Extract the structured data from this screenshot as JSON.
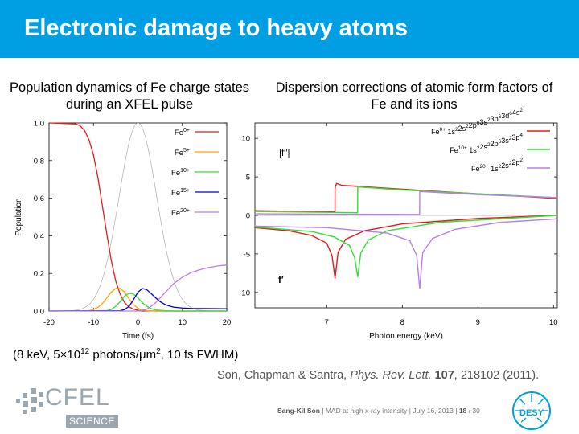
{
  "slide": {
    "title": "Electronic damage to heavy atoms",
    "params": {
      "pre": "(8 keV, 5×10",
      "exp": "12",
      "mid": " photons/μm",
      "exp2": "2",
      "post": ", 10 fs FWHM)"
    },
    "citation": {
      "authors": "Son, Chapman & Santra, ",
      "journal": "Phys. Rev. Lett.",
      "volume": "107",
      "rest": ", 218102 (2011)."
    },
    "footer": {
      "author": "Sang-Kil Son",
      "text": "  |  MAD at high x-ray intensity  |  July 16, 2013  |  ",
      "page": "18",
      "total": " / 30"
    },
    "logos": {
      "cfel": "CFEL",
      "cfel_sub": "SCIENCE",
      "desy": "DESY"
    },
    "colors": {
      "header": "#009fe3",
      "red": "#e41a1c",
      "orange": "#ffa500",
      "green": "#33e033",
      "blue": "#0000cc",
      "purple": "#b77fe8",
      "gray": "#a0a0a0"
    }
  },
  "chart_data": [
    {
      "type": "line",
      "title": "Population dynamics of Fe charge states during an XFEL pulse",
      "xlabel": "Time (fs)",
      "ylabel": "Population",
      "xlim": [
        -20,
        20
      ],
      "ylim": [
        0,
        1.0
      ],
      "xticks": [
        "-20",
        "-10",
        "0",
        "10",
        "20"
      ],
      "yticks": [
        "0.0",
        "0.2",
        "0.4",
        "0.6",
        "0.8",
        "1.0"
      ],
      "legend": "top-right",
      "series": [
        {
          "name": "Fe",
          "sup": "0+",
          "color": "#e41a1c",
          "x": [
            -20,
            -14,
            -13,
            -12,
            -11,
            -10,
            -9,
            -8,
            -7,
            -6,
            -5,
            -4,
            -3,
            -2,
            -1,
            0,
            1,
            2,
            4,
            6,
            10,
            15,
            20
          ],
          "y": [
            1.0,
            0.995,
            0.985,
            0.96,
            0.91,
            0.83,
            0.71,
            0.56,
            0.41,
            0.27,
            0.16,
            0.09,
            0.045,
            0.022,
            0.01,
            0.004,
            0.002,
            0.001,
            0,
            0,
            0,
            0,
            0
          ]
        },
        {
          "name": "Fe",
          "sup": "5+",
          "color": "#ffa500",
          "x": [
            -20,
            -11,
            -10,
            -9,
            -8,
            -7,
            -6,
            -5,
            -4,
            -3,
            -2,
            -1,
            0,
            1,
            2,
            4,
            6,
            10,
            20
          ],
          "y": [
            0,
            0.002,
            0.008,
            0.02,
            0.04,
            0.07,
            0.1,
            0.12,
            0.12,
            0.1,
            0.065,
            0.035,
            0.015,
            0.006,
            0.002,
            0,
            0,
            0,
            0
          ]
        },
        {
          "name": "Fe",
          "sup": "10+",
          "color": "#33e033",
          "x": [
            -20,
            -7,
            -6,
            -5,
            -4,
            -3,
            -2,
            -1,
            0,
            1,
            2,
            3,
            4,
            6,
            8,
            10,
            20
          ],
          "y": [
            0,
            0.002,
            0.008,
            0.025,
            0.05,
            0.08,
            0.095,
            0.09,
            0.07,
            0.045,
            0.025,
            0.013,
            0.006,
            0.002,
            0,
            0,
            0
          ]
        },
        {
          "name": "Fe",
          "sup": "15+",
          "color": "#0000cc",
          "x": [
            -20,
            -4,
            -3,
            -2,
            -1,
            0,
            1,
            2,
            3,
            4,
            5,
            6,
            7,
            8,
            10,
            12,
            15,
            20
          ],
          "y": [
            0,
            0.002,
            0.008,
            0.025,
            0.06,
            0.1,
            0.12,
            0.113,
            0.093,
            0.07,
            0.05,
            0.036,
            0.027,
            0.021,
            0.016,
            0.014,
            0.013,
            0.012
          ]
        },
        {
          "name": "Fe",
          "sup": "20+",
          "color": "#b77fe8",
          "x": [
            -20,
            0,
            1,
            2,
            3,
            4,
            5,
            6,
            7,
            8,
            10,
            12,
            14,
            16,
            18,
            20
          ],
          "y": [
            0,
            0,
            0.003,
            0.01,
            0.025,
            0.045,
            0.07,
            0.095,
            0.12,
            0.145,
            0.18,
            0.205,
            0.22,
            0.232,
            0.24,
            0.245
          ]
        },
        {
          "name": "",
          "color": "#a0a0a0",
          "pulse": true,
          "fwhm_fs": 10
        }
      ]
    },
    {
      "type": "line",
      "title": "Dispersion corrections of atomic form factors of Fe and its ions",
      "xlabel": "Photon energy (keV)",
      "xlim": [
        6.05,
        10.05
      ],
      "ylim": [
        -12,
        12
      ],
      "xticks": [
        "7",
        "8",
        "9",
        "10"
      ],
      "yticks": [
        "-10",
        "-5",
        "0",
        "5",
        "10"
      ],
      "annotations": [
        "|f′′|",
        "f′"
      ],
      "legend": "top-right",
      "series": [
        {
          "name": "Fe",
          "sup": "0+",
          "config": [
            [
              "1s",
              "2"
            ],
            [
              "2s",
              "2"
            ],
            [
              "2p",
              "6"
            ],
            [
              "3s",
              "2"
            ],
            [
              "3p",
              "6"
            ],
            [
              "3d",
              "6"
            ],
            [
              "4s",
              "2"
            ]
          ],
          "color": "#e41a1c",
          "edge_keV": 7.11,
          "f2_x": [
            6.05,
            7.109,
            7.11,
            7.13,
            7.2,
            8,
            9,
            10.05
          ],
          "f2_y": [
            0.6,
            0.45,
            3.6,
            4.15,
            3.9,
            3.4,
            2.8,
            2.2
          ],
          "f1_x": [
            6.05,
            6.5,
            6.8,
            7.0,
            7.07,
            7.11,
            7.15,
            7.25,
            7.5,
            8,
            9,
            10.05
          ],
          "f1_y": [
            -1.6,
            -2.0,
            -2.6,
            -3.6,
            -5.2,
            -8.2,
            -4.8,
            -3.1,
            -2.0,
            -1.1,
            -0.4,
            0
          ]
        },
        {
          "name": "Fe",
          "sup": "10+",
          "config": [
            [
              "1s",
              "2"
            ],
            [
              "2s",
              "2"
            ],
            [
              "2p",
              "6"
            ],
            [
              "3s",
              "2"
            ],
            [
              "3p",
              "4"
            ]
          ],
          "color": "#33e033",
          "edge_keV": 7.41,
          "f2_x": [
            6.05,
            7.409,
            7.41,
            8,
            9,
            10.05
          ],
          "f2_y": [
            0.5,
            0.35,
            3.7,
            3.3,
            2.8,
            2.3
          ],
          "f1_x": [
            6.05,
            6.8,
            7.1,
            7.3,
            7.37,
            7.41,
            7.45,
            7.55,
            7.8,
            8.5,
            10.05
          ],
          "f1_y": [
            -1.5,
            -2.1,
            -2.8,
            -3.9,
            -5.5,
            -8.0,
            -4.9,
            -3.2,
            -2.0,
            -0.9,
            0
          ]
        },
        {
          "name": "Fe",
          "sup": "20+",
          "config": [
            [
              "1s",
              "2"
            ],
            [
              "2s",
              "2"
            ],
            [
              "2p",
              "2"
            ]
          ],
          "color": "#b77fe8",
          "edge_keV": 8.23,
          "f2_x": [
            6.05,
            8.229,
            8.23,
            9,
            10.05
          ],
          "f2_y": [
            0.2,
            0.12,
            3.1,
            2.7,
            2.3
          ],
          "f1_x": [
            6.05,
            7,
            7.8,
            8.1,
            8.19,
            8.23,
            8.27,
            8.4,
            8.7,
            9.3,
            10.05
          ],
          "f1_y": [
            -1.4,
            -1.6,
            -2.3,
            -3.3,
            -5.2,
            -9.5,
            -4.8,
            -3.0,
            -1.8,
            -0.9,
            -0.45
          ]
        }
      ]
    }
  ]
}
